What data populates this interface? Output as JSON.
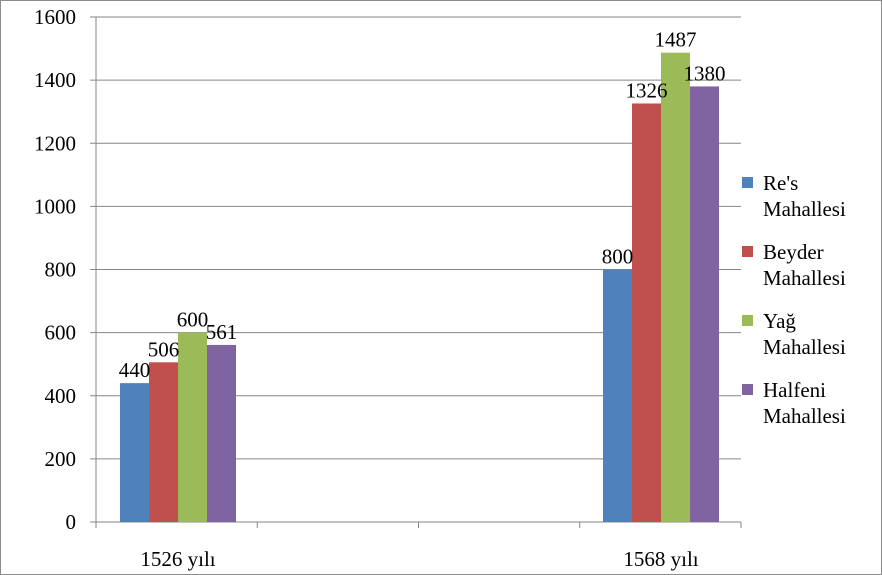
{
  "chart_data": {
    "type": "bar",
    "title": "",
    "xlabel": "",
    "ylabel": "",
    "categories": [
      "1526 yılı",
      "1568 yılı"
    ],
    "series": [
      {
        "name": "Re's Mahallesi",
        "legend_lines": [
          "Re's",
          "Mahallesi"
        ],
        "color": "#4f81bd",
        "values": [
          440,
          800
        ]
      },
      {
        "name": "Beyder Mahallesi",
        "legend_lines": [
          "Beyder",
          "Mahallesi"
        ],
        "color": "#c0504d",
        "values": [
          506,
          1326
        ]
      },
      {
        "name": "Yağ Mahallesi",
        "legend_lines": [
          "Yağ",
          "Mahallesi"
        ],
        "color": "#9bbb59",
        "values": [
          600,
          1487
        ]
      },
      {
        "name": "Halfeni Mahallesi",
        "legend_lines": [
          "Halfeni",
          "Mahallesi"
        ],
        "color": "#8064a2",
        "values": [
          561,
          1380
        ]
      }
    ],
    "ylim": [
      0,
      1600
    ],
    "yticks": [
      0,
      200,
      400,
      600,
      800,
      1000,
      1200,
      1400,
      1600
    ],
    "data_labels": true,
    "grid": "horizontal",
    "legend_position": "right",
    "gridline_color": "#868686",
    "axis_color": "#868686"
  }
}
